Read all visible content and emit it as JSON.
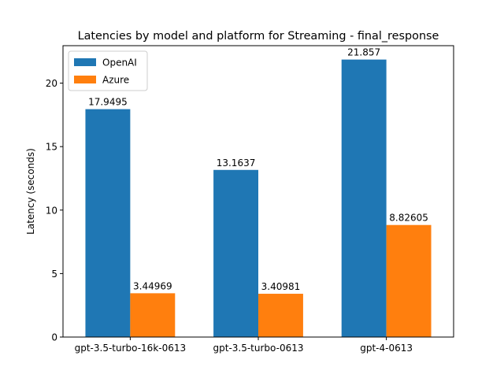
{
  "chart_data": {
    "type": "bar",
    "title": "Latencies by model and platform for Streaming - final_response",
    "xlabel": "",
    "ylabel": "Latency (seconds)",
    "categories": [
      "gpt-3.5-turbo-16k-0613",
      "gpt-3.5-turbo-0613",
      "gpt-4-0613"
    ],
    "series": [
      {
        "name": "OpenAI",
        "color": "#1f77b4",
        "values": [
          17.9495,
          13.1637,
          21.857
        ],
        "labels": [
          "17.9495",
          "13.1637",
          "21.857"
        ]
      },
      {
        "name": "Azure",
        "color": "#ff7f0e",
        "values": [
          3.44969,
          3.40981,
          8.82605
        ],
        "labels": [
          "3.44969",
          "3.40981",
          "8.82605"
        ]
      }
    ],
    "ylim": [
      0,
      22.95
    ],
    "yticks": [
      0,
      5,
      10,
      15,
      20
    ],
    "grid": false,
    "legend_position": "top-left"
  }
}
